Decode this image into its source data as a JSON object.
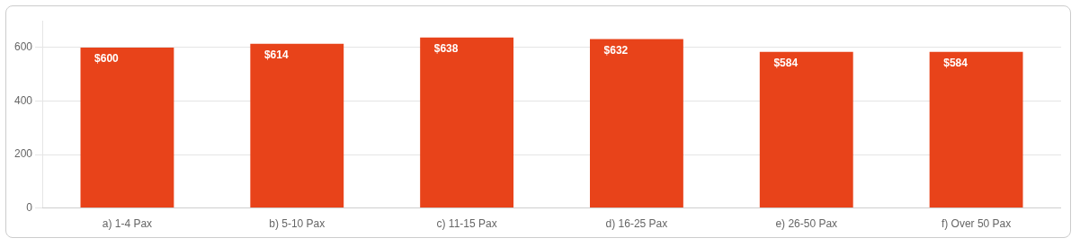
{
  "chart_data": {
    "type": "bar",
    "categories": [
      "a) 1-4 Pax",
      "b) 5-10 Pax",
      "c) 11-15 Pax",
      "d) 16-25 Pax",
      "e) 26-50 Pax",
      "f) Over 50 Pax"
    ],
    "values": [
      600,
      614,
      638,
      632,
      584,
      584
    ],
    "value_labels": [
      "$600",
      "$614",
      "$638",
      "$632",
      "$584",
      "$584"
    ],
    "data_labels": true,
    "color": "#E8431A",
    "ylim": [
      0,
      700
    ],
    "yticks": [
      0,
      200,
      400,
      600
    ],
    "grid": true
  }
}
